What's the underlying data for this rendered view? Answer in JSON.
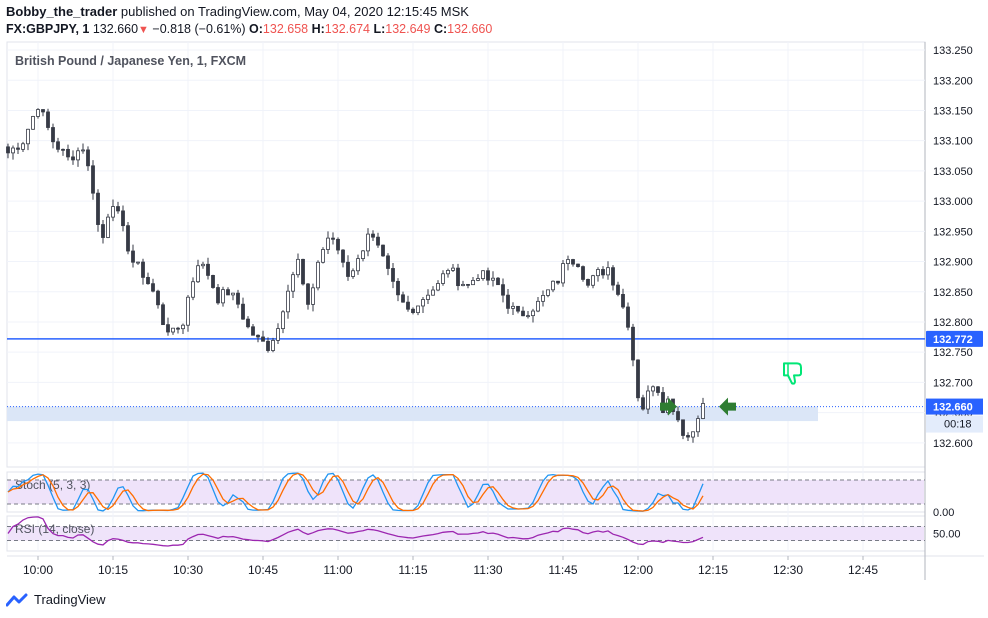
{
  "header": {
    "author": "Bobby_the_trader",
    "published_text": "published on TradingView.com, May 04, 2020 12:15:45 MSK",
    "symbol": "FX:GBPJPY, 1",
    "last": "132.660",
    "change": "−0.818 (−0.61%)",
    "o_label": "O:",
    "o": "132.658",
    "h_label": "H:",
    "h": "132.674",
    "l_label": "L:",
    "l": "132.649",
    "c_label": "C:",
    "c": "132.660"
  },
  "colors": {
    "up": "#26a69a",
    "down": "#ef5350",
    "candle": "#363a45",
    "hline": "#2962ff",
    "zone": "#dbe6f7",
    "stoch_k": "#2196f3",
    "stoch_d": "#ff6d00",
    "rsi": "#9c27b0",
    "band": "#efe3fa",
    "arrow": "#2e7d32",
    "thumb": "#00e676"
  },
  "footer": {
    "brand": "TradingView"
  },
  "chart_data": {
    "type": "candlestick",
    "title": "British Pound / Japanese Yen, 1, FXCM",
    "ylim": [
      132.56,
      133.26
    ],
    "y_ticks": [
      "132.600",
      "132.650",
      "132.700",
      "132.750",
      "132.800",
      "132.850",
      "132.900",
      "132.950",
      "133.000",
      "133.050",
      "133.100",
      "133.150",
      "133.200",
      "133.250"
    ],
    "x_ticks": [
      "10:00",
      "10:15",
      "10:30",
      "10:45",
      "11:00",
      "11:15",
      "11:30",
      "11:45",
      "12:00",
      "12:15",
      "12:30",
      "12:45"
    ],
    "horizontal_line": {
      "value": 132.772,
      "label": "132.772"
    },
    "price_label": {
      "value": 132.66,
      "label": "132.660",
      "countdown": "00:18"
    },
    "support_zone": [
      132.636,
      132.66
    ],
    "close_path": [
      [
        0,
        133.08
      ],
      [
        3,
        133.1
      ],
      [
        6,
        133.16
      ],
      [
        9,
        133.1
      ],
      [
        12,
        133.07
      ],
      [
        15,
        133.09
      ],
      [
        17,
        133.02
      ],
      [
        18,
        132.96
      ],
      [
        19,
        132.94
      ],
      [
        20,
        132.98
      ],
      [
        21,
        133.0
      ],
      [
        23,
        132.95
      ],
      [
        25,
        132.9
      ],
      [
        27,
        132.88
      ],
      [
        29,
        132.85
      ],
      [
        31,
        132.8
      ],
      [
        33,
        132.78
      ],
      [
        35,
        132.8
      ],
      [
        36,
        132.84
      ],
      [
        38,
        132.9
      ],
      [
        40,
        132.88
      ],
      [
        42,
        132.84
      ],
      [
        44,
        132.85
      ],
      [
        46,
        132.83
      ],
      [
        48,
        132.79
      ],
      [
        50,
        132.77
      ],
      [
        52,
        132.76
      ],
      [
        54,
        132.79
      ],
      [
        56,
        132.86
      ],
      [
        58,
        132.9
      ],
      [
        60,
        132.82
      ],
      [
        62,
        132.9
      ],
      [
        64,
        132.94
      ],
      [
        66,
        132.92
      ],
      [
        68,
        132.88
      ],
      [
        70,
        132.9
      ],
      [
        72,
        132.95
      ],
      [
        74,
        132.92
      ],
      [
        76,
        132.88
      ],
      [
        78,
        132.84
      ],
      [
        80,
        132.82
      ],
      [
        82,
        132.83
      ],
      [
        84,
        132.85
      ],
      [
        86,
        132.86
      ],
      [
        88,
        132.89
      ],
      [
        90,
        132.87
      ],
      [
        92,
        132.86
      ],
      [
        94,
        132.88
      ],
      [
        96,
        132.87
      ],
      [
        98,
        132.86
      ],
      [
        100,
        132.83
      ],
      [
        102,
        132.81
      ],
      [
        104,
        132.82
      ],
      [
        106,
        132.83
      ],
      [
        108,
        132.85
      ],
      [
        110,
        132.87
      ],
      [
        112,
        132.91
      ],
      [
        114,
        132.9
      ],
      [
        116,
        132.86
      ],
      [
        118,
        132.88
      ],
      [
        120,
        132.89
      ],
      [
        122,
        132.85
      ],
      [
        124,
        132.8
      ],
      [
        125,
        132.74
      ],
      [
        126,
        132.68
      ],
      [
        127,
        132.66
      ],
      [
        128,
        132.68
      ],
      [
        129,
        132.7
      ],
      [
        130,
        132.69
      ],
      [
        131,
        132.66
      ],
      [
        132,
        132.67
      ],
      [
        133,
        132.66
      ],
      [
        134,
        132.64
      ],
      [
        135,
        132.62
      ],
      [
        136,
        132.61
      ],
      [
        137,
        132.62
      ],
      [
        138,
        132.65
      ],
      [
        139,
        132.66
      ]
    ],
    "highlighted_bars": [
      134,
      135,
      136,
      137,
      138
    ],
    "signals": [
      {
        "bar": 132,
        "type": "arrow-right",
        "price": 132.66
      },
      {
        "bar": 144,
        "type": "arrow-left",
        "price": 132.66
      },
      {
        "bar": 157,
        "type": "thumbs-down",
        "price": 132.705
      }
    ],
    "indicators": [
      {
        "name": "Stoch (5, 3, 3)",
        "levels": [
          20,
          80
        ],
        "range": [
          0,
          100
        ],
        "tick": "0.00",
        "series": [
          "%K",
          "%D"
        ]
      },
      {
        "name": "RSI (14, close)",
        "levels": [
          30,
          70
        ],
        "range": [
          0,
          100
        ],
        "tick": "50.00"
      }
    ]
  }
}
